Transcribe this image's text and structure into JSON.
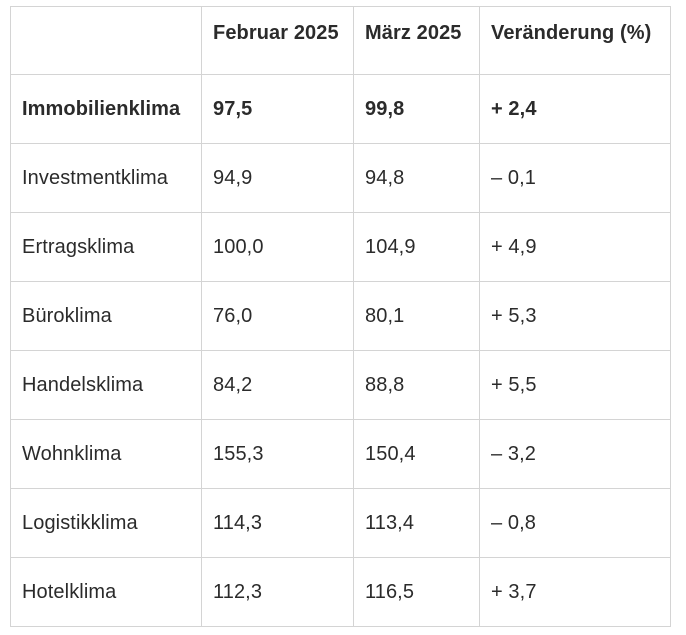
{
  "table": {
    "headers": [
      "",
      "Februar 2025",
      "März 2025",
      "Veränderung (%)"
    ],
    "rows": [
      {
        "label": "Immobilienklima",
        "feb": "97,5",
        "mar": "99,8",
        "change": "+ 2,4",
        "bold": true
      },
      {
        "label": "Investmentklima",
        "feb": "94,9",
        "mar": "94,8",
        "change": "– 0,1",
        "bold": false
      },
      {
        "label": "Ertragsklima",
        "feb": "100,0",
        "mar": "104,9",
        "change": "+ 4,9",
        "bold": false
      },
      {
        "label": "Büroklima",
        "feb": "76,0",
        "mar": "80,1",
        "change": "+ 5,3",
        "bold": false
      },
      {
        "label": "Handelsklima",
        "feb": "84,2",
        "mar": "88,8",
        "change": "+ 5,5",
        "bold": false
      },
      {
        "label": "Wohnklima",
        "feb": "155,3",
        "mar": "150,4",
        "change": "– 3,2",
        "bold": false
      },
      {
        "label": "Logistikklima",
        "feb": "114,3",
        "mar": "113,4",
        "change": "– 0,8",
        "bold": false
      },
      {
        "label": "Hotelklima",
        "feb": "112,3",
        "mar": "116,5",
        "change": "+ 3,7",
        "bold": false
      }
    ]
  }
}
